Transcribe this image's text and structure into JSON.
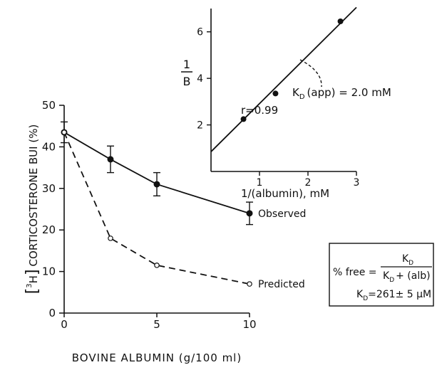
{
  "chart_data": [
    {
      "type": "line",
      "ylabel_parts": {
        "open": "[",
        "sup": "3",
        "el": "H",
        "close": "]",
        "rest": "CORTICOSTERONE BUI (%)"
      },
      "xlabel": "BOVINE ALBUMIN (g/100 ml)",
      "x_ticks": [
        "0",
        "5",
        "10"
      ],
      "x_tick_values": [
        0,
        5,
        10
      ],
      "y_ticks": [
        "0",
        "10",
        "20",
        "30",
        "40",
        "50"
      ],
      "y_tick_values": [
        0,
        10,
        20,
        30,
        40,
        50
      ],
      "xlim": [
        0,
        10
      ],
      "ylim": [
        0,
        50
      ],
      "x": [
        0,
        2.5,
        5,
        10
      ],
      "series": [
        {
          "name": "Observed",
          "style": "solid-filled",
          "values": [
            43.5,
            37,
            31,
            24
          ],
          "err": [
            2.5,
            3.2,
            2.8,
            2.7
          ]
        },
        {
          "name": "Predicted",
          "style": "dashed-open",
          "values": [
            43.5,
            18,
            11.5,
            7
          ],
          "err": null
        }
      ]
    },
    {
      "type": "scatter",
      "ylabel": {
        "num": "1",
        "den": "B"
      },
      "xlabel": "1/(albumin), mM",
      "x_ticks": [
        "1",
        "2",
        "3"
      ],
      "x_tick_values": [
        1,
        2,
        3
      ],
      "y_ticks": [
        "2",
        "4",
        "6"
      ],
      "y_tick_values": [
        2,
        4,
        6
      ],
      "xlim": [
        0,
        3
      ],
      "ylim": [
        0,
        7
      ],
      "points": [
        {
          "x": 0.67,
          "y": 2.25
        },
        {
          "x": 1.33,
          "y": 3.35
        },
        {
          "x": 2.67,
          "y": 6.45
        }
      ],
      "fit_line": {
        "x": [
          0,
          3
        ],
        "y": [
          0.85,
          7.05
        ]
      },
      "annotation_r": "r=0.99",
      "annotation_kd": "K",
      "annotation_kd_sub": "D",
      "annotation_kd_rest": "(app) = 2.0 mM"
    }
  ],
  "formula_box": {
    "lhs": "% free =",
    "num_main": "K",
    "num_sub": "D",
    "den_main": "K",
    "den_sub": "D",
    "den_rest": "+ (alb)",
    "kd_main": "K",
    "kd_sub": "D",
    "kd_rest": "=261± 5 μM"
  }
}
